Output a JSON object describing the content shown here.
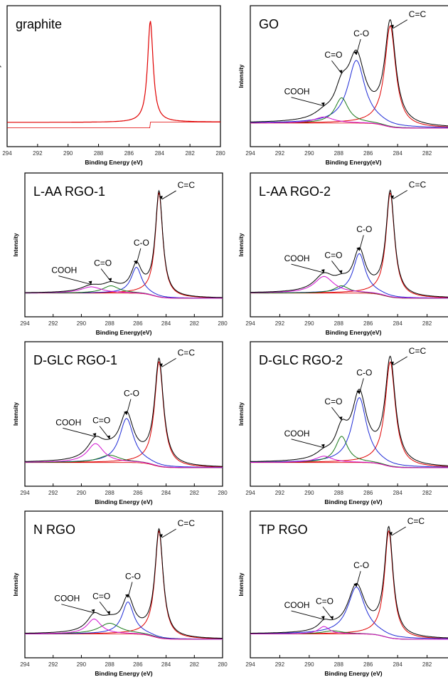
{
  "figure": {
    "xlabel_a": "Binding Energy (eV)",
    "xlabel_b": "Binding Energy(eV)",
    "ylabel": "Intensity",
    "xticks": [
      "294",
      "292",
      "290",
      "288",
      "286",
      "284",
      "282",
      "280"
    ],
    "colors": {
      "envelope": "#000000",
      "cc": "#e00000",
      "co": "#1f2bd6",
      "cdo": "#1a7a1a",
      "cooh": "#d010d0",
      "baseline": "#e00000",
      "graphite": "#e00000",
      "frame": "#000000"
    }
  },
  "chart_data": [
    {
      "type": "line",
      "title": "graphite",
      "xlim": [
        294,
        280
      ],
      "xlabel": "Binding Energy (eV)",
      "ylabel": "Intensity",
      "series": [
        {
          "name": "",
          "center": 284.6,
          "height": 1.0,
          "width": 0.22
        }
      ],
      "baseline_offset": 0.06,
      "annotations": []
    },
    {
      "type": "line",
      "title": "GO",
      "xlim": [
        294,
        280
      ],
      "xlabel": "Binding Energy(eV)",
      "ylabel": "Intensity",
      "series": [
        {
          "name": "C=C",
          "center": 284.5,
          "height": 1.0,
          "width": 0.45
        },
        {
          "name": "C-O",
          "center": 286.8,
          "height": 0.62,
          "width": 0.7
        },
        {
          "name": "C=O",
          "center": 287.8,
          "height": 0.25,
          "width": 0.55
        },
        {
          "name": "COOH",
          "center": 289.0,
          "height": 0.06,
          "width": 0.8
        }
      ],
      "annotations": [
        "C=C",
        "C-O",
        "C=O",
        "COOH"
      ]
    },
    {
      "type": "line",
      "title": "L-AA RGO-1",
      "xlim": [
        294,
        280
      ],
      "xlabel": "Binding Energy(eV)",
      "ylabel": "Intensity",
      "series": [
        {
          "name": "C=C",
          "center": 284.5,
          "height": 1.0,
          "width": 0.32
        },
        {
          "name": "C-O",
          "center": 286.1,
          "height": 0.25,
          "width": 0.45
        },
        {
          "name": "C=O",
          "center": 287.9,
          "height": 0.07,
          "width": 0.7
        },
        {
          "name": "COOH",
          "center": 289.3,
          "height": 0.06,
          "width": 0.9
        }
      ],
      "annotations": [
        "C=C",
        "C-O",
        "C=O",
        "COOH"
      ]
    },
    {
      "type": "line",
      "title": "L-AA RGO-2",
      "xlim": [
        294,
        280
      ],
      "xlabel": "Binding Energy(eV)",
      "ylabel": "Intensity",
      "series": [
        {
          "name": "C=C",
          "center": 284.5,
          "height": 1.0,
          "width": 0.35
        },
        {
          "name": "C-O",
          "center": 286.6,
          "height": 0.38,
          "width": 0.5
        },
        {
          "name": "C=O",
          "center": 287.8,
          "height": 0.07,
          "width": 0.6
        },
        {
          "name": "COOH",
          "center": 289.0,
          "height": 0.16,
          "width": 0.8
        }
      ],
      "annotations": [
        "C=C",
        "C-O",
        "C=O",
        "COOH"
      ]
    },
    {
      "type": "line",
      "title": "D-GLC RGO-1",
      "xlim": [
        294,
        280
      ],
      "xlabel": "Binding Energy (eV)",
      "ylabel": "Intensity",
      "series": [
        {
          "name": "C=C",
          "center": 284.5,
          "height": 1.0,
          "width": 0.38
        },
        {
          "name": "C-O",
          "center": 286.8,
          "height": 0.42,
          "width": 0.6
        },
        {
          "name": "C=O",
          "center": 288.0,
          "height": 0.07,
          "width": 0.9
        },
        {
          "name": "COOH",
          "center": 289.0,
          "height": 0.18,
          "width": 0.7
        }
      ],
      "annotations": [
        "C=C",
        "C-O",
        "C=O",
        "COOH"
      ]
    },
    {
      "type": "line",
      "title": "D-GLC RGO-2",
      "xlim": [
        294,
        280
      ],
      "xlabel": "Binding Energy (eV)",
      "ylabel": "Intensity",
      "series": [
        {
          "name": "C=C",
          "center": 284.5,
          "height": 1.0,
          "width": 0.42
        },
        {
          "name": "C-O",
          "center": 286.6,
          "height": 0.62,
          "width": 0.6
        },
        {
          "name": "C=O",
          "center": 287.8,
          "height": 0.25,
          "width": 0.5
        },
        {
          "name": "COOH",
          "center": 289.0,
          "height": 0.06,
          "width": 0.7
        }
      ],
      "annotations": [
        "C=C",
        "C-O",
        "C=O",
        "COOH"
      ]
    },
    {
      "type": "line",
      "title": "N RGO",
      "xlim": [
        294,
        280
      ],
      "xlabel": "Binding Energy (eV)",
      "ylabel": "Intensity",
      "series": [
        {
          "name": "C=C",
          "center": 284.5,
          "height": 1.0,
          "width": 0.35
        },
        {
          "name": "C-O",
          "center": 286.7,
          "height": 0.3,
          "width": 0.5
        },
        {
          "name": "C=O",
          "center": 288.0,
          "height": 0.1,
          "width": 0.9
        },
        {
          "name": "COOH",
          "center": 289.1,
          "height": 0.14,
          "width": 0.6
        }
      ],
      "annotations": [
        "C=C",
        "C-O",
        "C=O",
        "COOH"
      ]
    },
    {
      "type": "line",
      "title": "TP RGO",
      "xlim": [
        294,
        280
      ],
      "xlabel": "Binding Energy (eV)",
      "ylabel": "Intensity",
      "series": [
        {
          "name": "C=C",
          "center": 284.6,
          "height": 1.0,
          "width": 0.35
        },
        {
          "name": "C-O",
          "center": 286.8,
          "height": 0.44,
          "width": 0.7
        },
        {
          "name": "C=O",
          "center": 288.4,
          "height": 0.03,
          "width": 0.8
        },
        {
          "name": "COOH",
          "center": 289.0,
          "height": 0.07,
          "width": 0.45
        }
      ],
      "annotations": [
        "C=C",
        "C-O",
        "C=O",
        "COOH"
      ]
    }
  ]
}
